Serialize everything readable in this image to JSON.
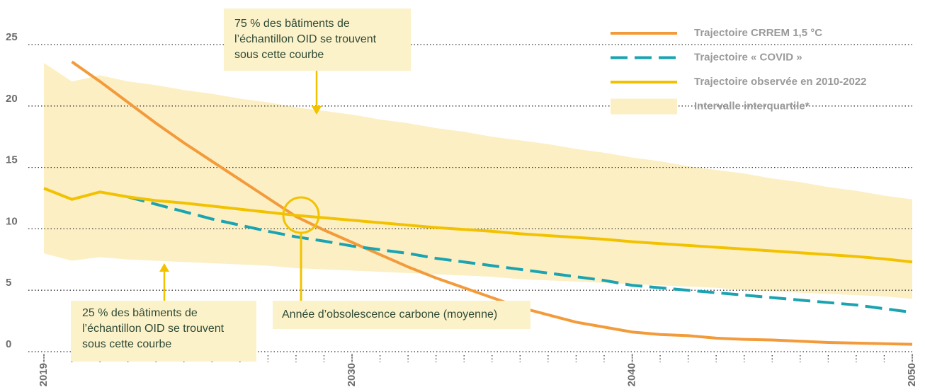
{
  "chart_data": {
    "type": "line",
    "x": [
      2019,
      2020,
      2021,
      2022,
      2023,
      2024,
      2025,
      2026,
      2027,
      2028,
      2029,
      2030,
      2031,
      2032,
      2033,
      2034,
      2035,
      2036,
      2037,
      2038,
      2039,
      2040,
      2041,
      2042,
      2043,
      2044,
      2045,
      2046,
      2047,
      2048,
      2049,
      2050
    ],
    "xlim": [
      2019,
      2050
    ],
    "xticks": [
      2019,
      2030,
      2040,
      2050
    ],
    "ylim": [
      0,
      25
    ],
    "yticks": [
      0,
      5,
      10,
      15,
      20,
      25
    ],
    "grid": true,
    "legend": "upper right",
    "series": [
      {
        "name": "Trajectoire CRREM 1,5 °C",
        "color": "#f39b3a",
        "style": "solid",
        "values": [
          null,
          23.6,
          22.0,
          20.3,
          18.6,
          17.0,
          15.5,
          14.0,
          12.5,
          11.0,
          9.9,
          8.9,
          7.9,
          6.9,
          6.0,
          5.2,
          4.4,
          3.6,
          3.0,
          2.4,
          2.0,
          1.6,
          1.4,
          1.3,
          1.1,
          1.0,
          0.95,
          0.85,
          0.75,
          0.7,
          0.65,
          0.6
        ]
      },
      {
        "name": "Trajectoire « COVID »",
        "color": "#1aa3b0",
        "style": "dashed",
        "values": [
          null,
          null,
          null,
          12.6,
          12.0,
          11.4,
          10.8,
          10.3,
          9.8,
          9.35,
          9.0,
          8.6,
          8.3,
          8.0,
          7.6,
          7.3,
          7.0,
          6.7,
          6.4,
          6.1,
          5.8,
          5.4,
          5.2,
          5.0,
          4.8,
          4.6,
          4.4,
          4.2,
          4.0,
          3.8,
          3.5,
          3.2
        ]
      },
      {
        "name": "Trajectoire observée en 2010-2022",
        "color": "#f2c200",
        "style": "solid",
        "values": [
          13.3,
          12.4,
          13.0,
          12.6,
          12.3,
          12.1,
          11.85,
          11.6,
          11.35,
          11.1,
          10.9,
          10.7,
          10.5,
          10.3,
          10.1,
          9.95,
          9.8,
          9.6,
          9.45,
          9.3,
          9.15,
          8.95,
          8.8,
          8.65,
          8.5,
          8.35,
          8.2,
          8.05,
          7.9,
          7.75,
          7.55,
          7.3
        ]
      }
    ],
    "band": {
      "name": "Intervalle interquartile*",
      "color": "#fcefc4",
      "upper": [
        23.5,
        22.0,
        22.5,
        22.0,
        21.7,
        21.3,
        21.0,
        20.6,
        20.3,
        19.9,
        19.6,
        19.3,
        18.9,
        18.6,
        18.2,
        17.9,
        17.5,
        17.2,
        16.9,
        16.5,
        16.2,
        15.8,
        15.5,
        15.1,
        14.8,
        14.5,
        14.1,
        13.8,
        13.4,
        13.1,
        12.7,
        12.4
      ],
      "lower": [
        8.0,
        7.4,
        7.7,
        7.5,
        7.4,
        7.3,
        7.2,
        7.1,
        7.0,
        6.8,
        6.7,
        6.6,
        6.5,
        6.4,
        6.3,
        6.2,
        6.1,
        5.9,
        5.8,
        5.7,
        5.6,
        5.5,
        5.4,
        5.3,
        5.2,
        5.0,
        4.9,
        4.8,
        4.7,
        4.6,
        4.5,
        4.3
      ]
    },
    "annotations": [
      {
        "lines": [
          "75 % des bâtiments de",
          "l’échantillon OID se trouvent",
          "sous cette courbe"
        ]
      },
      {
        "lines": [
          "25 % des bâtiments de",
          "l’échantillon OID se trouvent",
          "sous cette courbe"
        ]
      },
      {
        "lines": [
          "Année d’obsolescence carbone (moyenne)"
        ]
      }
    ]
  }
}
